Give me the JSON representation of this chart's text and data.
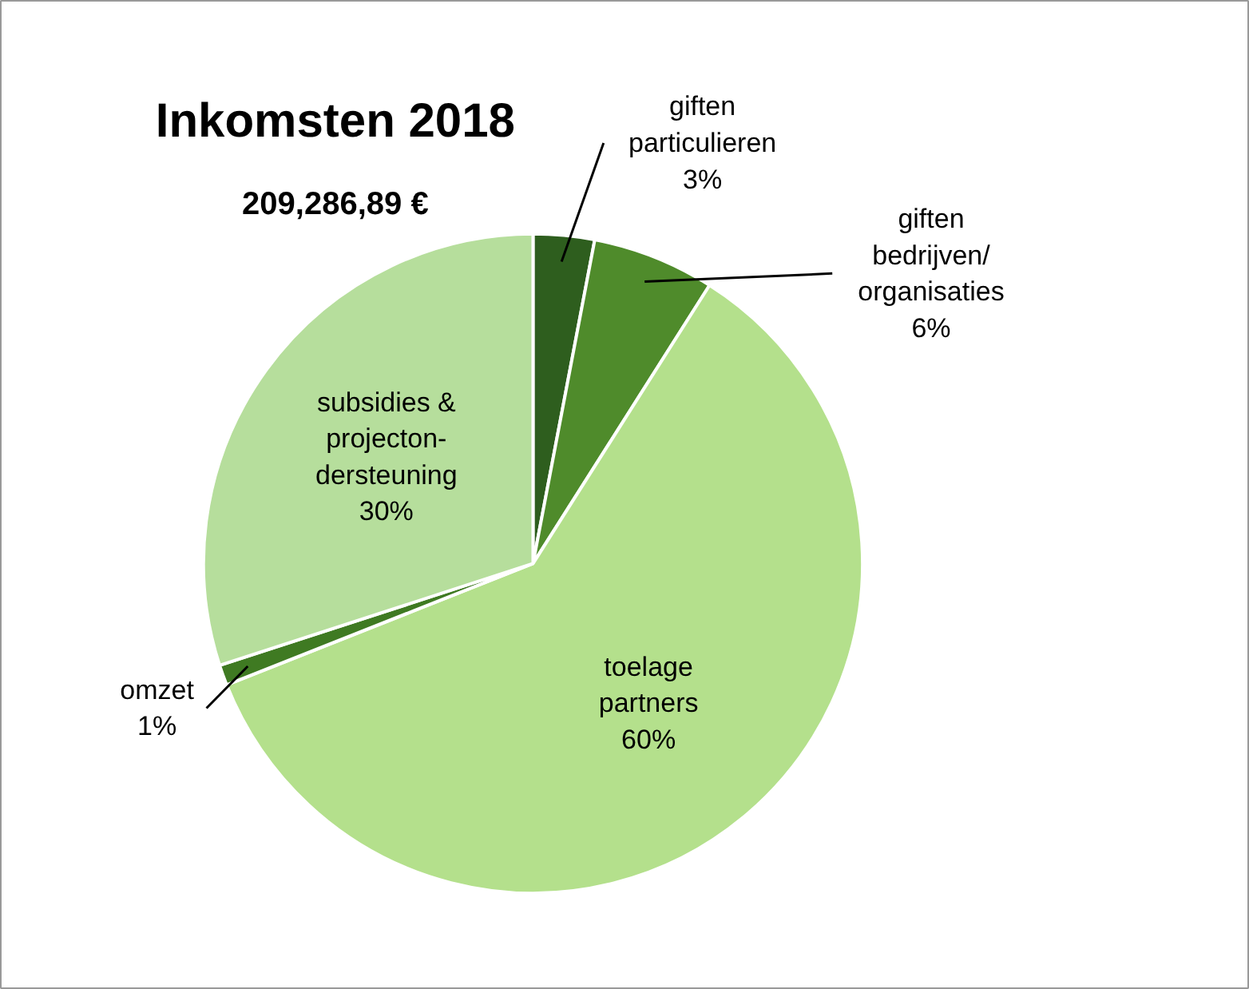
{
  "chart_data": {
    "type": "pie",
    "title": "Inkomsten 2018",
    "subtitle": "209,286,89 €",
    "categories": [
      "giften\nparticulieren",
      "giften\nbedrijven/\norganisaties",
      "toelage\npartners",
      "omzet",
      "subsidies &\nprojecton-\ndersteuning"
    ],
    "values": [
      3,
      6,
      60,
      1,
      30
    ],
    "colors": [
      "#2e5e1e",
      "#4f8b2b",
      "#b4e08c",
      "#3f7a22",
      "#b6de9c"
    ],
    "value_labels": [
      "3%",
      "6%",
      "60%",
      "1%",
      "30%"
    ]
  }
}
